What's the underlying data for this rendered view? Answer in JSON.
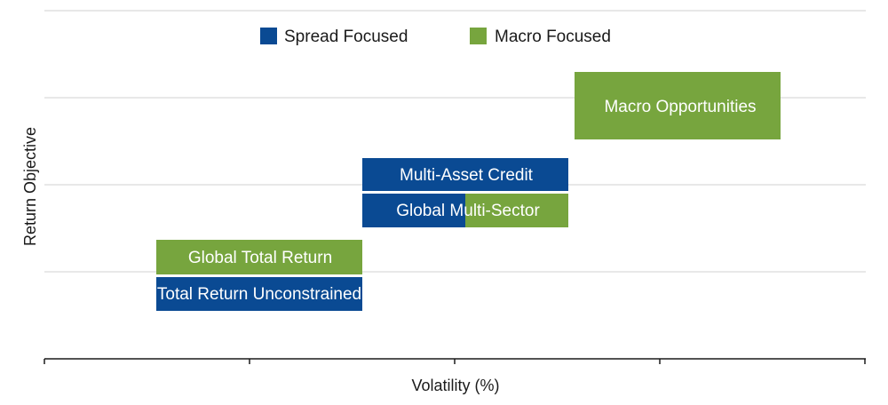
{
  "chart_data": {
    "type": "bar",
    "title": "",
    "xlabel": "Volatility (%)",
    "ylabel": "Return Objective",
    "grid": true,
    "legend_position": "top-center",
    "colors": {
      "Spread Focused": "#0a4a93",
      "Macro Focused": "#77a53e"
    },
    "legend": [
      {
        "name": "Spread Focused",
        "color": "#0a4a93"
      },
      {
        "name": "Macro Focused",
        "color": "#77a53e"
      }
    ],
    "bars": [
      {
        "label": "Macro Opportunities",
        "segments": [
          {
            "series": "Macro Focused",
            "fraction": 1.0
          }
        ]
      },
      {
        "label": "Multi-Asset Credit",
        "segments": [
          {
            "series": "Spread Focused",
            "fraction": 1.0
          }
        ]
      },
      {
        "label": "Global Multi-Sector",
        "segments": [
          {
            "series": "Spread Focused",
            "fraction": 0.5
          },
          {
            "series": "Macro Focused",
            "fraction": 0.5
          }
        ]
      },
      {
        "label": "Global Total Return",
        "segments": [
          {
            "series": "Macro Focused",
            "fraction": 1.0
          }
        ]
      },
      {
        "label": "Total Return Unconstrained",
        "segments": [
          {
            "series": "Spread Focused",
            "fraction": 1.0
          }
        ]
      }
    ]
  }
}
